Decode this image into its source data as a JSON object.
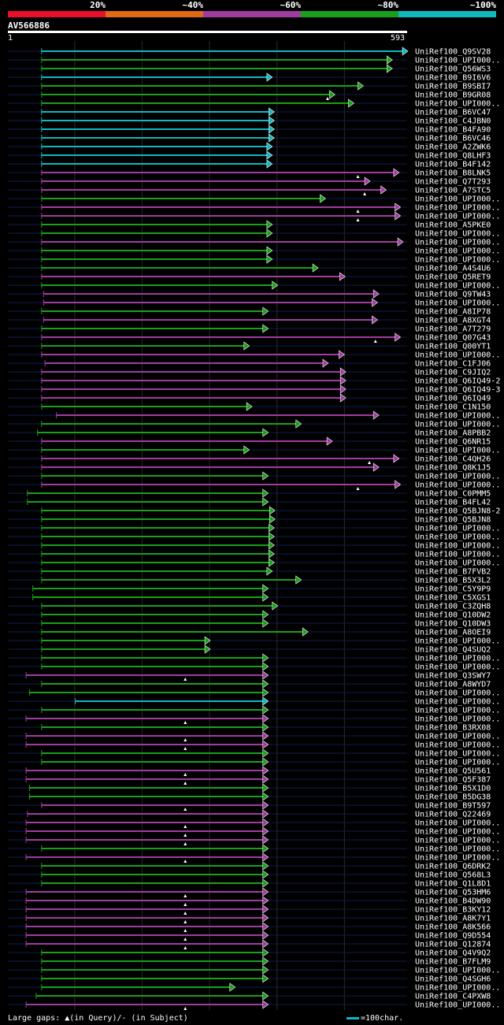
{
  "legend": {
    "labels": [
      "20%",
      "~40%",
      "~60%",
      "~80%",
      "~100%"
    ],
    "colors": [
      "#e8102a",
      "#e06a12",
      "#a03ca0",
      "#1aa01a",
      "#10b8c0"
    ]
  },
  "query": {
    "name": "AV566886",
    "start": "1",
    "end": "593"
  },
  "footer": {
    "gaps_text": "Large gaps: ▲(in Query)/- (in Subject)",
    "scale_text": "=100char."
  },
  "chart_data": {
    "type": "alignment",
    "x_range": [
      1,
      593
    ],
    "hits": [
      {
        "name": "UniRef100_Q9SV28",
        "start": 51,
        "end": 593,
        "cls": 4
      },
      {
        "name": "UniRef100_UPI000..",
        "start": 51,
        "end": 570,
        "cls": 3
      },
      {
        "name": "UniRef100_Q56WS3",
        "start": 51,
        "end": 570,
        "cls": 3
      },
      {
        "name": "UniRef100_B9I6V6",
        "start": 51,
        "end": 392,
        "cls": 4
      },
      {
        "name": "UniRef100_B9SBI7",
        "start": 51,
        "end": 527,
        "cls": 3
      },
      {
        "name": "UniRef100_B9GR08",
        "start": 51,
        "end": 485,
        "cls": 3,
        "mark": 475
      },
      {
        "name": "UniRef100_UPI000..",
        "start": 51,
        "end": 513,
        "cls": 3
      },
      {
        "name": "UniRef100_B6VC47",
        "start": 51,
        "end": 395,
        "cls": 4
      },
      {
        "name": "UniRef100_C4JBN0",
        "start": 51,
        "end": 395,
        "cls": 4
      },
      {
        "name": "UniRef100_B4FA90",
        "start": 51,
        "end": 395,
        "cls": 4
      },
      {
        "name": "UniRef100_B6VC46",
        "start": 51,
        "end": 395,
        "cls": 4
      },
      {
        "name": "UniRef100_A2ZWK6",
        "start": 51,
        "end": 392,
        "cls": 4
      },
      {
        "name": "UniRef100_Q8LHF3",
        "start": 51,
        "end": 392,
        "cls": 4
      },
      {
        "name": "UniRef100_B4F142",
        "start": 51,
        "end": 392,
        "cls": 4
      },
      {
        "name": "UniRef100_B8LNK5",
        "start": 51,
        "end": 580,
        "cls": 2,
        "mark": 520
      },
      {
        "name": "UniRef100_Q7T293",
        "start": 51,
        "end": 537,
        "cls": 2
      },
      {
        "name": "UniRef100_A7STC5",
        "start": 51,
        "end": 561,
        "cls": 2,
        "mark": 530
      },
      {
        "name": "UniRef100_UPI000..",
        "start": 51,
        "end": 471,
        "cls": 3
      },
      {
        "name": "UniRef100_UPI000..",
        "start": 51,
        "end": 582,
        "cls": 2,
        "mark": 520
      },
      {
        "name": "UniRef100_UPI000..",
        "start": 51,
        "end": 582,
        "cls": 2,
        "mark": 520
      },
      {
        "name": "UniRef100_A5PKE0",
        "start": 51,
        "end": 392,
        "cls": 3
      },
      {
        "name": "UniRef100_UPI000..",
        "start": 51,
        "end": 392,
        "cls": 3
      },
      {
        "name": "UniRef100_UPI000..",
        "start": 51,
        "end": 586,
        "cls": 2
      },
      {
        "name": "UniRef100_UPI000..",
        "start": 51,
        "end": 392,
        "cls": 3
      },
      {
        "name": "UniRef100_UPI000..",
        "start": 51,
        "end": 392,
        "cls": 3
      },
      {
        "name": "UniRef100_A4S4U6",
        "start": 51,
        "end": 460,
        "cls": 3
      },
      {
        "name": "UniRef100_Q5RET9",
        "start": 51,
        "end": 500,
        "cls": 2
      },
      {
        "name": "UniRef100_UPI000..",
        "start": 51,
        "end": 400,
        "cls": 3
      },
      {
        "name": "UniRef100_Q9TW43",
        "start": 54,
        "end": 550,
        "cls": 2
      },
      {
        "name": "UniRef100_UPI000..",
        "start": 54,
        "end": 548,
        "cls": 2
      },
      {
        "name": "UniRef100_A8IP78",
        "start": 51,
        "end": 386,
        "cls": 3
      },
      {
        "name": "UniRef100_A8XGT4",
        "start": 54,
        "end": 548,
        "cls": 2
      },
      {
        "name": "UniRef100_A7T279",
        "start": 51,
        "end": 386,
        "cls": 3
      },
      {
        "name": "UniRef100_Q07G43",
        "start": 51,
        "end": 582,
        "cls": 2,
        "mark": 546
      },
      {
        "name": "UniRef100_Q00YT1",
        "start": 51,
        "end": 358,
        "cls": 3
      },
      {
        "name": "UniRef100_UPI000..",
        "start": 51,
        "end": 499,
        "cls": 2
      },
      {
        "name": "UniRef100_C1FJ06",
        "start": 56,
        "end": 475,
        "cls": 2
      },
      {
        "name": "UniRef100_C9JIQ2",
        "start": 51,
        "end": 501,
        "cls": 2
      },
      {
        "name": "UniRef100_Q6IQ49-2",
        "start": 51,
        "end": 501,
        "cls": 2
      },
      {
        "name": "UniRef100_Q6IQ49-3",
        "start": 51,
        "end": 501,
        "cls": 2
      },
      {
        "name": "UniRef100_Q6IQ49",
        "start": 51,
        "end": 501,
        "cls": 2
      },
      {
        "name": "UniRef100_C1N150",
        "start": 51,
        "end": 362,
        "cls": 3
      },
      {
        "name": "UniRef100_UPI000..",
        "start": 73,
        "end": 550,
        "cls": 2
      },
      {
        "name": "UniRef100_UPI000..",
        "start": 51,
        "end": 435,
        "cls": 3
      },
      {
        "name": "UniRef100_A8PBB2",
        "start": 45,
        "end": 386,
        "cls": 3
      },
      {
        "name": "UniRef100_Q6NR15",
        "start": 51,
        "end": 481,
        "cls": 2
      },
      {
        "name": "UniRef100_UPI000..",
        "start": 51,
        "end": 358,
        "cls": 3
      },
      {
        "name": "UniRef100_C4QH26",
        "start": 51,
        "end": 580,
        "cls": 2,
        "mark": 537
      },
      {
        "name": "UniRef100_Q8K1J5",
        "start": 51,
        "end": 550,
        "cls": 2
      },
      {
        "name": "UniRef100_UPI000..",
        "start": 51,
        "end": 386,
        "cls": 3
      },
      {
        "name": "UniRef100_UPI000..",
        "start": 51,
        "end": 582,
        "cls": 2,
        "mark": 520
      },
      {
        "name": "UniRef100_C0PMM5",
        "start": 30,
        "end": 386,
        "cls": 3
      },
      {
        "name": "UniRef100_B4FL42",
        "start": 30,
        "end": 386,
        "cls": 3
      },
      {
        "name": "UniRef100_Q5BJN8-2",
        "start": 51,
        "end": 396,
        "cls": 3
      },
      {
        "name": "UniRef100_Q5BJN8",
        "start": 51,
        "end": 396,
        "cls": 3
      },
      {
        "name": "UniRef100_UPI000..",
        "start": 51,
        "end": 395,
        "cls": 3
      },
      {
        "name": "UniRef100_UPI000..",
        "start": 51,
        "end": 395,
        "cls": 3
      },
      {
        "name": "UniRef100_UPI000..",
        "start": 51,
        "end": 395,
        "cls": 3
      },
      {
        "name": "UniRef100_UPI000..",
        "start": 51,
        "end": 395,
        "cls": 3
      },
      {
        "name": "UniRef100_UPI000..",
        "start": 51,
        "end": 395,
        "cls": 3
      },
      {
        "name": "UniRef100_B7FVB2",
        "start": 51,
        "end": 392,
        "cls": 3
      },
      {
        "name": "UniRef100_B5X3L2",
        "start": 51,
        "end": 435,
        "cls": 3
      },
      {
        "name": "UniRef100_C5Y9P9",
        "start": 38,
        "end": 386,
        "cls": 3
      },
      {
        "name": "UniRef100_C5XGS1",
        "start": 38,
        "end": 386,
        "cls": 3
      },
      {
        "name": "UniRef100_C3ZQH8",
        "start": 51,
        "end": 400,
        "cls": 3
      },
      {
        "name": "UniRef100_Q10DW2",
        "start": 51,
        "end": 386,
        "cls": 3
      },
      {
        "name": "UniRef100_Q10DW3",
        "start": 51,
        "end": 386,
        "cls": 3
      },
      {
        "name": "UniRef100_A8OEI9",
        "start": 51,
        "end": 445,
        "cls": 3
      },
      {
        "name": "UniRef100_UPI000..",
        "start": 51,
        "end": 300,
        "cls": 3
      },
      {
        "name": "UniRef100_Q4SUQ2",
        "start": 51,
        "end": 300,
        "cls": 3
      },
      {
        "name": "UniRef100_UPI000..",
        "start": 51,
        "end": 386,
        "cls": 3
      },
      {
        "name": "UniRef100_UPI000..",
        "start": 51,
        "end": 386,
        "cls": 3
      },
      {
        "name": "UniRef100_Q3SWY7",
        "start": 28,
        "end": 386,
        "cls": 2,
        "mark": 264
      },
      {
        "name": "UniRef100_A8WYD7",
        "start": 51,
        "end": 386,
        "cls": 3
      },
      {
        "name": "UniRef100_UPI000..",
        "start": 33,
        "end": 386,
        "cls": 3
      },
      {
        "name": "UniRef100_UPI000..",
        "start": 101,
        "end": 386,
        "cls": 4
      },
      {
        "name": "UniRef100_UPI000..",
        "start": 51,
        "end": 386,
        "cls": 3
      },
      {
        "name": "UniRef100_UPI000..",
        "start": 28,
        "end": 386,
        "cls": 2,
        "mark": 264
      },
      {
        "name": "UniRef100_B3RX08",
        "start": 51,
        "end": 386,
        "cls": 3
      },
      {
        "name": "UniRef100_UPI000..",
        "start": 28,
        "end": 386,
        "cls": 2,
        "mark": 264
      },
      {
        "name": "UniRef100_UPI000..",
        "start": 28,
        "end": 386,
        "cls": 2,
        "mark": 264
      },
      {
        "name": "UniRef100_UPI000..",
        "start": 51,
        "end": 386,
        "cls": 3
      },
      {
        "name": "UniRef100_UPI000..",
        "start": 51,
        "end": 386,
        "cls": 3
      },
      {
        "name": "UniRef100_Q5U561",
        "start": 28,
        "end": 386,
        "cls": 2,
        "mark": 264
      },
      {
        "name": "UniRef100_Q5F387",
        "start": 28,
        "end": 386,
        "cls": 2,
        "mark": 264
      },
      {
        "name": "UniRef100_B5X1D0",
        "start": 33,
        "end": 386,
        "cls": 3
      },
      {
        "name": "UniRef100_B5DG38",
        "start": 33,
        "end": 386,
        "cls": 3
      },
      {
        "name": "UniRef100_B9T597",
        "start": 51,
        "end": 386,
        "cls": 2,
        "mark": 264
      },
      {
        "name": "UniRef100_Q22469",
        "start": 30,
        "end": 386,
        "cls": 2
      },
      {
        "name": "UniRef100_UPI000..",
        "start": 28,
        "end": 386,
        "cls": 2,
        "mark": 264
      },
      {
        "name": "UniRef100_UPI000..",
        "start": 28,
        "end": 386,
        "cls": 2,
        "mark": 264
      },
      {
        "name": "UniRef100_UPI000..",
        "start": 28,
        "end": 386,
        "cls": 2,
        "mark": 264
      },
      {
        "name": "UniRef100_UPI000..",
        "start": 51,
        "end": 386,
        "cls": 3
      },
      {
        "name": "UniRef100_UPI000..",
        "start": 28,
        "end": 386,
        "cls": 2,
        "mark": 264
      },
      {
        "name": "UniRef100_Q6DRK2",
        "start": 51,
        "end": 386,
        "cls": 3
      },
      {
        "name": "UniRef100_Q568L3",
        "start": 51,
        "end": 386,
        "cls": 3
      },
      {
        "name": "UniRef100_Q1L8D1",
        "start": 51,
        "end": 386,
        "cls": 3
      },
      {
        "name": "UniRef100_Q53HM6",
        "start": 28,
        "end": 386,
        "cls": 2,
        "mark": 264
      },
      {
        "name": "UniRef100_B4DW90",
        "start": 28,
        "end": 386,
        "cls": 2,
        "mark": 264
      },
      {
        "name": "UniRef100_B3KY12",
        "start": 28,
        "end": 386,
        "cls": 2,
        "mark": 264
      },
      {
        "name": "UniRef100_A8K7Y1",
        "start": 28,
        "end": 386,
        "cls": 2,
        "mark": 264
      },
      {
        "name": "UniRef100_A8K566",
        "start": 28,
        "end": 386,
        "cls": 2,
        "mark": 264
      },
      {
        "name": "UniRef100_Q9D554",
        "start": 28,
        "end": 386,
        "cls": 2,
        "mark": 264
      },
      {
        "name": "UniRef100_Q12874",
        "start": 28,
        "end": 386,
        "cls": 2,
        "mark": 264
      },
      {
        "name": "UniRef100_Q4V9Q2",
        "start": 51,
        "end": 386,
        "cls": 3
      },
      {
        "name": "UniRef100_B7FLM9",
        "start": 51,
        "end": 386,
        "cls": 3
      },
      {
        "name": "UniRef100_UPI000..",
        "start": 51,
        "end": 386,
        "cls": 3
      },
      {
        "name": "UniRef100_Q4SGH6",
        "start": 51,
        "end": 386,
        "cls": 3
      },
      {
        "name": "UniRef100_UPI000..",
        "start": 51,
        "end": 337,
        "cls": 3
      },
      {
        "name": "UniRef100_C4PXW8",
        "start": 43,
        "end": 386,
        "cls": 3
      },
      {
        "name": "UniRef100_UPI000..",
        "start": 28,
        "end": 386,
        "cls": 2,
        "mark": 264
      }
    ]
  }
}
